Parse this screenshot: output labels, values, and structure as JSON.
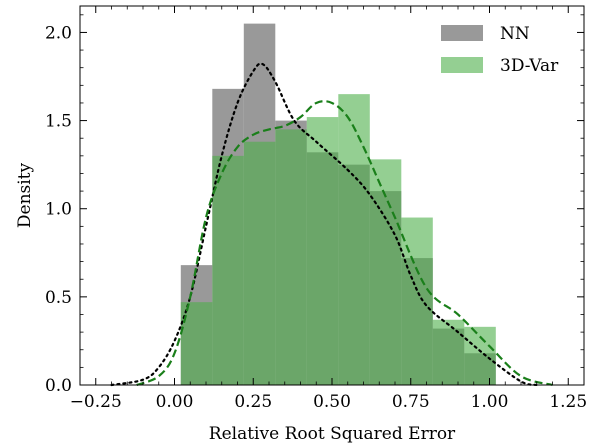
{
  "chart_data": {
    "type": "histogram",
    "xlabel": "Relative Root Squared Error",
    "ylabel": "Density",
    "xlim": [
      -0.3,
      1.3
    ],
    "ylim": [
      0.0,
      2.15
    ],
    "xticks": [
      -0.25,
      0.0,
      0.25,
      0.5,
      0.75,
      1.0,
      1.25
    ],
    "xtick_labels": [
      "−0.25",
      "0.00",
      "0.25",
      "0.50",
      "0.75",
      "1.00",
      "1.25"
    ],
    "yticks": [
      0.0,
      0.5,
      1.0,
      1.5,
      2.0
    ],
    "ytick_labels": [
      "0.0",
      "0.5",
      "1.0",
      "1.5",
      "2.0"
    ],
    "grid": false,
    "legend_position": "top-right",
    "series": [
      {
        "name": "NN",
        "kind": "histogram",
        "color": "#808080",
        "bins": [
          {
            "x0": 0.02,
            "x1": 0.12,
            "value": 0.68
          },
          {
            "x0": 0.12,
            "x1": 0.22,
            "value": 1.68
          },
          {
            "x0": 0.22,
            "x1": 0.32,
            "value": 2.05
          },
          {
            "x0": 0.32,
            "x1": 0.42,
            "value": 1.5
          },
          {
            "x0": 0.42,
            "x1": 0.52,
            "value": 1.32
          },
          {
            "x0": 0.52,
            "x1": 0.62,
            "value": 1.25
          },
          {
            "x0": 0.62,
            "x1": 0.72,
            "value": 1.1
          },
          {
            "x0": 0.72,
            "x1": 0.82,
            "value": 0.72
          },
          {
            "x0": 0.82,
            "x1": 0.92,
            "value": 0.32
          },
          {
            "x0": 0.92,
            "x1": 1.02,
            "value": 0.18
          }
        ]
      },
      {
        "name": "3D-Var",
        "kind": "histogram",
        "color": "#4daf4a",
        "bins": [
          {
            "x0": 0.02,
            "x1": 0.12,
            "value": 0.47
          },
          {
            "x0": 0.12,
            "x1": 0.22,
            "value": 1.3
          },
          {
            "x0": 0.22,
            "x1": 0.32,
            "value": 1.38
          },
          {
            "x0": 0.32,
            "x1": 0.42,
            "value": 1.45
          },
          {
            "x0": 0.42,
            "x1": 0.52,
            "value": 1.52
          },
          {
            "x0": 0.52,
            "x1": 0.62,
            "value": 1.65
          },
          {
            "x0": 0.62,
            "x1": 0.72,
            "value": 1.28
          },
          {
            "x0": 0.72,
            "x1": 0.82,
            "value": 0.95
          },
          {
            "x0": 0.82,
            "x1": 0.92,
            "value": 0.37
          },
          {
            "x0": 0.92,
            "x1": 1.02,
            "value": 0.33
          }
        ]
      },
      {
        "kind": "kde",
        "style": "dotted",
        "color": "#000000",
        "x": [
          -0.2,
          -0.1,
          -0.05,
          0.0,
          0.05,
          0.1,
          0.15,
          0.2,
          0.25,
          0.28,
          0.32,
          0.38,
          0.45,
          0.55,
          0.62,
          0.7,
          0.75,
          0.8,
          0.9,
          1.0,
          1.1,
          1.15
        ],
        "y": [
          0.0,
          0.03,
          0.1,
          0.25,
          0.5,
          0.9,
          1.3,
          1.6,
          1.78,
          1.82,
          1.72,
          1.5,
          1.38,
          1.22,
          1.08,
          0.85,
          0.62,
          0.45,
          0.3,
          0.15,
          0.02,
          0.0
        ]
      },
      {
        "kind": "kde",
        "style": "dashed",
        "color": "#1a7f1a",
        "x": [
          -0.12,
          -0.05,
          0.0,
          0.05,
          0.1,
          0.15,
          0.2,
          0.25,
          0.3,
          0.35,
          0.4,
          0.45,
          0.5,
          0.55,
          0.6,
          0.65,
          0.7,
          0.8,
          0.9,
          1.0,
          1.1,
          1.2
        ],
        "y": [
          0.0,
          0.05,
          0.18,
          0.5,
          0.95,
          1.2,
          1.35,
          1.42,
          1.45,
          1.47,
          1.52,
          1.6,
          1.6,
          1.52,
          1.35,
          1.15,
          0.95,
          0.55,
          0.4,
          0.22,
          0.05,
          0.0
        ]
      }
    ]
  }
}
